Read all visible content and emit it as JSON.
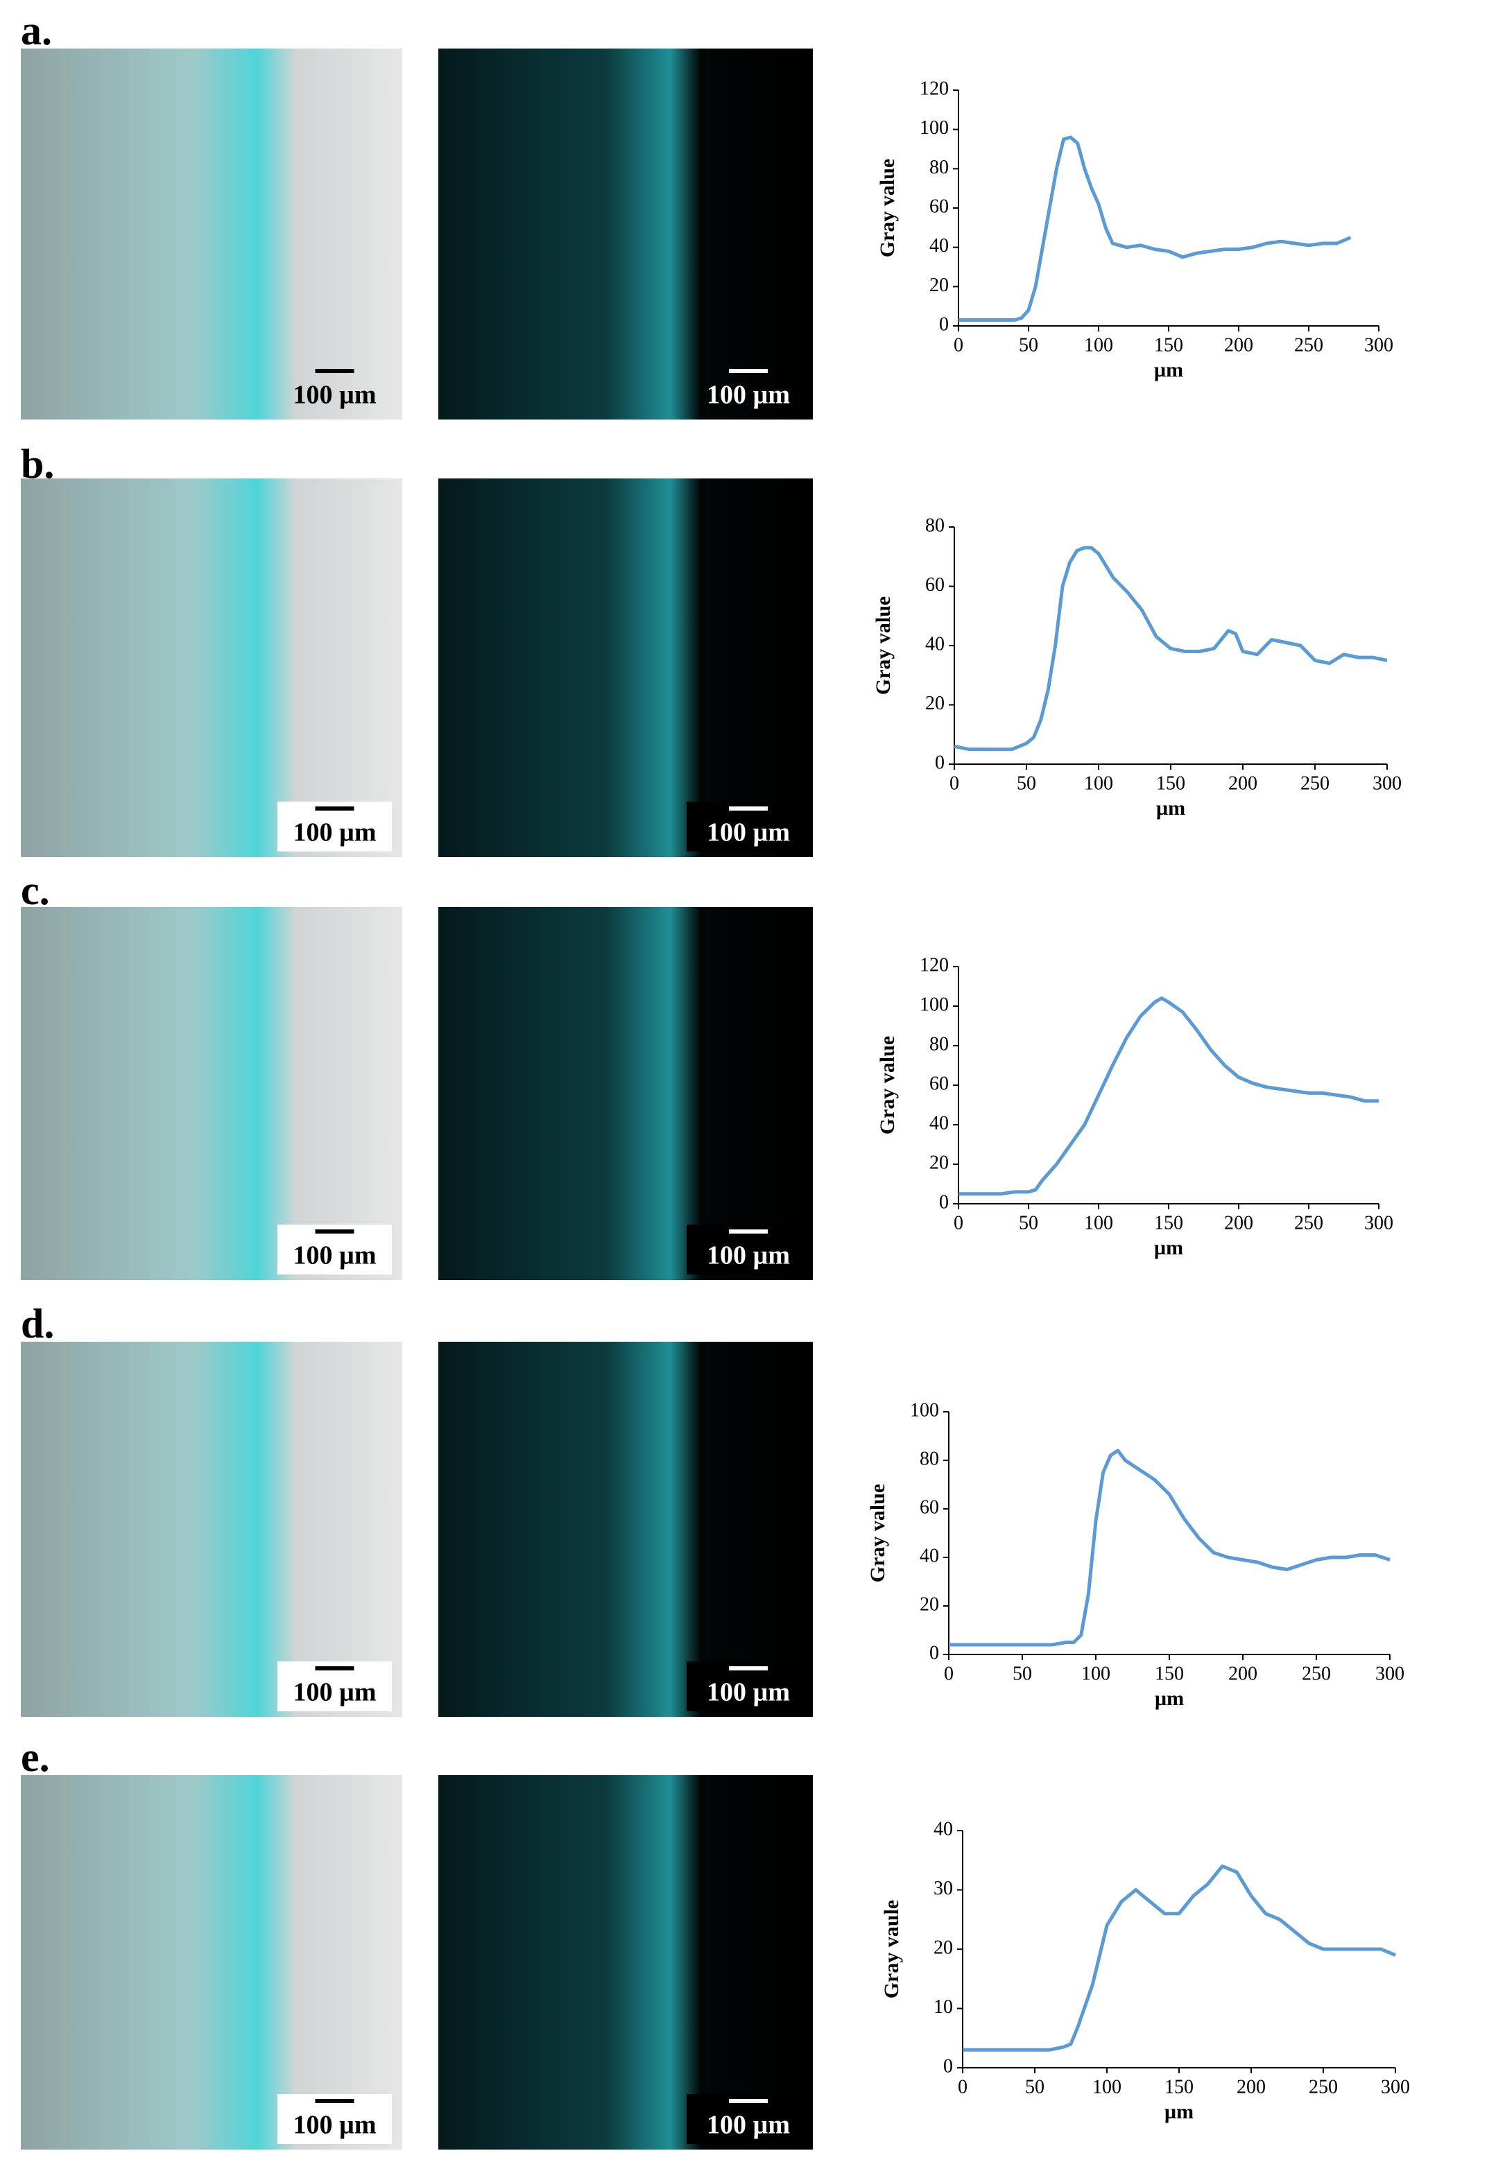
{
  "panels": [
    {
      "label": "a.",
      "scale_bars": [
        "100 µm",
        "100 µm"
      ]
    },
    {
      "label": "b.",
      "scale_bars": [
        "100 µm",
        "100 µm"
      ]
    },
    {
      "label": "c.",
      "scale_bars": [
        "100 µm",
        "100 µm"
      ]
    },
    {
      "label": "d.",
      "scale_bars": [
        "100 µm",
        "100 µm"
      ]
    },
    {
      "label": "e.",
      "scale_bars": [
        "100 µm",
        "100 µm"
      ]
    }
  ],
  "chart_data": [
    {
      "type": "line",
      "y_label": "Gray value",
      "x_label": "µm",
      "color": "#5b9bd5",
      "x": [
        0,
        10,
        20,
        30,
        40,
        45,
        50,
        55,
        60,
        65,
        70,
        75,
        80,
        85,
        90,
        95,
        100,
        105,
        110,
        115,
        120,
        130,
        140,
        150,
        160,
        170,
        180,
        190,
        200,
        210,
        220,
        230,
        240,
        250,
        260,
        270,
        280
      ],
      "values": [
        3,
        3,
        3,
        3,
        3,
        4,
        8,
        20,
        40,
        60,
        80,
        95,
        96,
        93,
        80,
        70,
        62,
        50,
        42,
        41,
        40,
        41,
        39,
        38,
        35,
        37,
        38,
        39,
        39,
        40,
        42,
        43,
        42,
        41,
        42,
        42,
        45
      ],
      "xlim": [
        0,
        300
      ],
      "ylim": [
        0,
        120
      ],
      "xticks": [
        0,
        50,
        100,
        150,
        200,
        250,
        300
      ],
      "yticks": [
        0,
        20,
        40,
        60,
        80,
        100,
        120
      ]
    },
    {
      "type": "line",
      "y_label": "Gray value",
      "x_label": "µm",
      "color": "#5b9bd5",
      "x": [
        0,
        10,
        20,
        30,
        40,
        50,
        55,
        60,
        65,
        70,
        75,
        80,
        85,
        90,
        95,
        100,
        105,
        110,
        120,
        130,
        140,
        150,
        160,
        170,
        180,
        190,
        195,
        200,
        210,
        220,
        230,
        240,
        250,
        260,
        270,
        280,
        290,
        300
      ],
      "values": [
        6,
        5,
        5,
        5,
        5,
        7,
        9,
        15,
        25,
        40,
        60,
        68,
        72,
        73,
        73,
        71,
        67,
        63,
        58,
        52,
        43,
        39,
        38,
        38,
        39,
        45,
        44,
        38,
        37,
        42,
        41,
        40,
        35,
        34,
        37,
        36,
        36,
        35
      ],
      "xlim": [
        0,
        300
      ],
      "ylim": [
        0,
        80
      ],
      "xticks": [
        0,
        50,
        100,
        150,
        200,
        250,
        300
      ],
      "yticks": [
        0,
        20,
        40,
        60,
        80
      ]
    },
    {
      "type": "line",
      "y_label": "Gray value",
      "x_label": "µm",
      "color": "#5b9bd5",
      "x": [
        0,
        10,
        20,
        30,
        40,
        50,
        55,
        60,
        70,
        80,
        90,
        100,
        110,
        120,
        130,
        140,
        145,
        150,
        160,
        170,
        180,
        190,
        200,
        210,
        220,
        230,
        240,
        250,
        260,
        270,
        280,
        290,
        300
      ],
      "values": [
        5,
        5,
        5,
        5,
        6,
        6,
        7,
        12,
        20,
        30,
        40,
        55,
        70,
        84,
        95,
        102,
        104,
        102,
        97,
        88,
        78,
        70,
        64,
        61,
        59,
        58,
        57,
        56,
        56,
        55,
        54,
        52,
        52
      ],
      "xlim": [
        0,
        300
      ],
      "ylim": [
        0,
        120
      ],
      "xticks": [
        0,
        50,
        100,
        150,
        200,
        250,
        300
      ],
      "yticks": [
        0,
        20,
        40,
        60,
        80,
        100,
        120
      ]
    },
    {
      "type": "line",
      "y_label": "Gray value",
      "x_label": "µm",
      "color": "#5b9bd5",
      "x": [
        0,
        10,
        20,
        30,
        40,
        50,
        60,
        70,
        80,
        85,
        90,
        95,
        100,
        105,
        110,
        115,
        120,
        130,
        140,
        150,
        160,
        170,
        180,
        190,
        200,
        210,
        220,
        230,
        240,
        250,
        260,
        270,
        280,
        290,
        300
      ],
      "values": [
        4,
        4,
        4,
        4,
        4,
        4,
        4,
        4,
        5,
        5,
        8,
        25,
        55,
        75,
        82,
        84,
        80,
        76,
        72,
        66,
        56,
        48,
        42,
        40,
        39,
        38,
        36,
        35,
        37,
        39,
        40,
        40,
        41,
        41,
        39
      ],
      "xlim": [
        0,
        300
      ],
      "ylim": [
        0,
        100
      ],
      "xticks": [
        0,
        50,
        100,
        150,
        200,
        250,
        300
      ],
      "yticks": [
        0,
        20,
        40,
        60,
        80,
        100
      ]
    },
    {
      "type": "line",
      "y_label": "Gray vaule",
      "x_label": "µm",
      "color": "#5b9bd5",
      "x": [
        0,
        10,
        20,
        30,
        40,
        50,
        60,
        70,
        75,
        80,
        90,
        100,
        110,
        120,
        130,
        140,
        150,
        160,
        170,
        180,
        190,
        200,
        210,
        220,
        230,
        240,
        250,
        260,
        270,
        280,
        290,
        300
      ],
      "values": [
        3,
        3,
        3,
        3,
        3,
        3,
        3,
        3.5,
        4,
        7,
        14,
        24,
        28,
        30,
        28,
        26,
        26,
        29,
        31,
        34,
        33,
        29,
        26,
        25,
        23,
        21,
        20,
        20,
        20,
        20,
        20,
        19
      ],
      "xlim": [
        0,
        300
      ],
      "ylim": [
        0,
        40
      ],
      "xticks": [
        0,
        50,
        100,
        150,
        200,
        250,
        300
      ],
      "yticks": [
        0,
        10,
        20,
        30,
        40
      ]
    }
  ]
}
